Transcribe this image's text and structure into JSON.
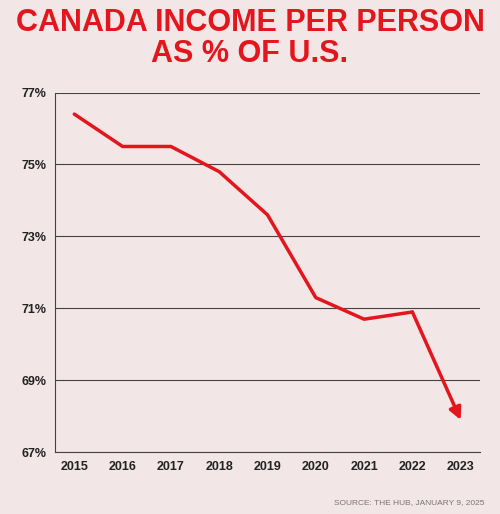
{
  "chart_data": {
    "type": "line",
    "title": "CANADA INCOME PER PERSON\nAS % OF U.S.",
    "source": "SOURCE: THE HUB, JANUARY 9, 2025",
    "x": [
      2015,
      2016,
      2017,
      2018,
      2019,
      2020,
      2021,
      2022,
      2023
    ],
    "values": [
      76.4,
      75.5,
      75.5,
      74.8,
      73.6,
      71.3,
      70.7,
      70.9,
      67.9
    ],
    "color": "#e3161d",
    "xlim": [
      2014.6,
      2023.4
    ],
    "xticks": [
      2015,
      2016,
      2017,
      2018,
      2019,
      2020,
      2021,
      2022,
      2023
    ],
    "ylim": [
      67,
      77
    ],
    "yticks": [
      {
        "value": 67,
        "label": "67%"
      },
      {
        "value": 69,
        "label": "69%"
      },
      {
        "value": 71,
        "label": "71%"
      },
      {
        "value": 73,
        "label": "73%"
      },
      {
        "value": 75,
        "label": "75%"
      },
      {
        "value": 77,
        "label": "77%"
      }
    ],
    "grid": true,
    "marker": "none",
    "line_style": "solid"
  }
}
